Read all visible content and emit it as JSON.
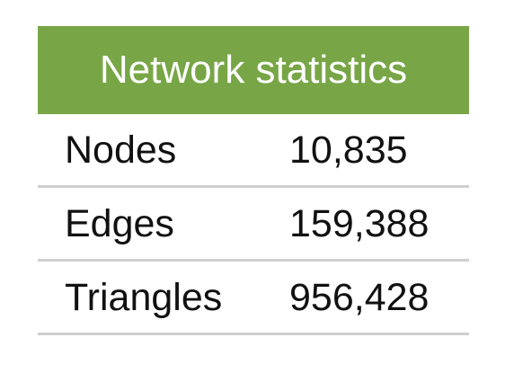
{
  "table": {
    "title": "Network statistics",
    "rows": [
      {
        "label": "Nodes",
        "value": "10,835"
      },
      {
        "label": "Edges",
        "value": "159,388"
      },
      {
        "label": "Triangles",
        "value": "956,428"
      }
    ]
  },
  "colors": {
    "header_background": "#78a647",
    "header_text": "#ffffff",
    "row_divider": "#cfcfcf"
  }
}
